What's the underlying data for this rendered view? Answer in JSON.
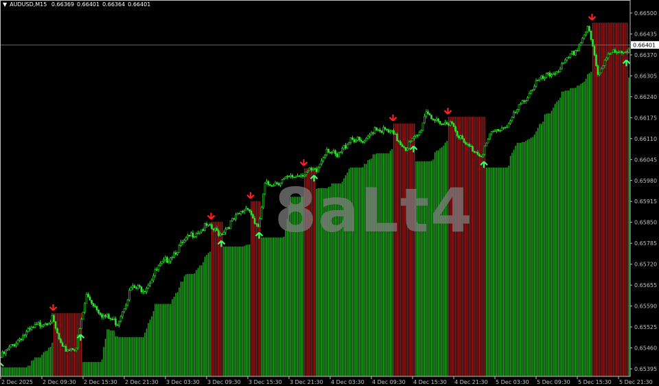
{
  "header": {
    "symbol_timeframe": "AUDUSD,M15",
    "open": "0.66369",
    "high": "0.66401",
    "low": "0.66364",
    "close": "0.66401"
  },
  "watermark": "8aLt4",
  "colors": {
    "background": "#000000",
    "candle": "#2ee82e",
    "hist_up_line": "#22b022",
    "hist_up_fill": "#0b4a0b",
    "hist_down_line": "#a81c1c",
    "hist_down_fill": "#3c0a0a",
    "buy_arrow": "#33ff66",
    "sell_arrow": "#ff2020",
    "axis_text": "#c0c0c0"
  },
  "chart_data": {
    "type": "candlestick",
    "timeframe": "M15",
    "current_price": "0.66401",
    "ylim": [
      0.6536,
      0.6654
    ],
    "y_ticks": [
      "0.66500",
      "0.66435",
      "0.66370",
      "0.66305",
      "0.66240",
      "0.66175",
      "0.66110",
      "0.66045",
      "0.65980",
      "0.65915",
      "0.65850",
      "0.65785",
      "0.65720",
      "0.65655",
      "0.65590",
      "0.65525",
      "0.65460",
      "0.65395"
    ],
    "x_ticks": [
      "2 Dec 2025",
      "2 Dec 09:30",
      "2 Dec 15:30",
      "2 Dec 21:30",
      "3 Dec 03:30",
      "3 Dec 09:30",
      "3 Dec 15:30",
      "3 Dec 21:30",
      "4 Dec 03:30",
      "4 Dec 09:30",
      "4 Dec 15:30",
      "4 Dec 21:30",
      "5 Dec 03:30",
      "5 Dec 09:30",
      "5 Dec 15:30",
      "5 Dec 21:30"
    ],
    "close_path": [
      [
        "2 Dec 03:30",
        0.65431
      ],
      [
        "2 Dec 06:30",
        0.65495
      ],
      [
        "2 Dec 09:30",
        0.65538
      ],
      [
        "2 Dec 11:00",
        0.65549
      ],
      [
        "2 Dec 12:30",
        0.65453
      ],
      [
        "2 Dec 14:30",
        0.65463
      ],
      [
        "2 Dec 16:00",
        0.65623
      ],
      [
        "2 Dec 18:30",
        0.65559
      ],
      [
        "2 Dec 20:30",
        0.65538
      ],
      [
        "2 Dec 22:30",
        0.65645
      ],
      [
        "3 Dec 00:30",
        0.65645
      ],
      [
        "3 Dec 02:30",
        0.65709
      ],
      [
        "3 Dec 04:30",
        0.65751
      ],
      [
        "3 Dec 07:30",
        0.65815
      ],
      [
        "3 Dec 09:30",
        0.65837
      ],
      [
        "3 Dec 11:30",
        0.65815
      ],
      [
        "3 Dec 13:30",
        0.65858
      ],
      [
        "3 Dec 15:30",
        0.65901
      ],
      [
        "3 Dec 17:00",
        0.65826
      ],
      [
        "3 Dec 18:00",
        0.65965
      ],
      [
        "3 Dec 21:30",
        0.65986
      ],
      [
        "4 Dec 00:00",
        0.66007
      ],
      [
        "4 Dec 01:30",
        0.66007
      ],
      [
        "4 Dec 03:00",
        0.66082
      ],
      [
        "4 Dec 04:30",
        0.6605
      ],
      [
        "4 Dec 06:30",
        0.66114
      ],
      [
        "4 Dec 08:30",
        0.66093
      ],
      [
        "4 Dec 10:00",
        0.66146
      ],
      [
        "4 Dec 12:30",
        0.66125
      ],
      [
        "4 Dec 14:30",
        0.66082
      ],
      [
        "4 Dec 16:30",
        0.66125
      ],
      [
        "4 Dec 17:30",
        0.66199
      ],
      [
        "4 Dec 19:30",
        0.66146
      ],
      [
        "4 Dec 21:00",
        0.66167
      ],
      [
        "4 Dec 23:00",
        0.66093
      ],
      [
        "5 Dec 01:30",
        0.66061
      ],
      [
        "5 Dec 03:00",
        0.66125
      ],
      [
        "5 Dec 05:30",
        0.66157
      ],
      [
        "5 Dec 07:30",
        0.66221
      ],
      [
        "5 Dec 09:30",
        0.66285
      ],
      [
        "5 Dec 11:30",
        0.66306
      ],
      [
        "5 Dec 13:30",
        0.66338
      ],
      [
        "5 Dec 15:30",
        0.66391
      ],
      [
        "5 Dec 17:00",
        0.66455
      ],
      [
        "5 Dec 17:45",
        0.66391
      ],
      [
        "5 Dec 18:30",
        0.66306
      ],
      [
        "5 Dec 20:00",
        0.66381
      ],
      [
        "5 Dec 22:00",
        0.6637
      ],
      [
        "5 Dec 23:15",
        0.66401
      ]
    ],
    "down_zones": [
      {
        "start": "2 Dec 11:15",
        "end": "2 Dec 15:15",
        "level": 0.65568
      },
      {
        "start": "3 Dec 10:15",
        "end": "3 Dec 11:45",
        "level": 0.65852
      },
      {
        "start": "3 Dec 16:00",
        "end": "3 Dec 17:15",
        "level": 0.65916
      },
      {
        "start": "3 Dec 23:45",
        "end": "4 Dec 01:15",
        "level": 0.66018
      },
      {
        "start": "4 Dec 12:45",
        "end": "4 Dec 15:45",
        "level": 0.66157
      },
      {
        "start": "4 Dec 20:45",
        "end": "5 Dec 02:00",
        "level": 0.66178
      },
      {
        "start": "5 Dec 17:45",
        "end": "5 Dec 22:45",
        "level": 0.6647
      }
    ],
    "buy_signals": [
      "2 Dec 03:30",
      "2 Dec 15:15",
      "3 Dec 11:45",
      "3 Dec 17:15",
      "4 Dec 01:15",
      "4 Dec 15:45",
      "5 Dec 02:00",
      "5 Dec 22:45"
    ],
    "sell_signals": [
      "2 Dec 11:15",
      "3 Dec 10:15",
      "3 Dec 16:00",
      "3 Dec 23:45",
      "4 Dec 12:45",
      "4 Dec 20:45",
      "5 Dec 17:45"
    ]
  }
}
